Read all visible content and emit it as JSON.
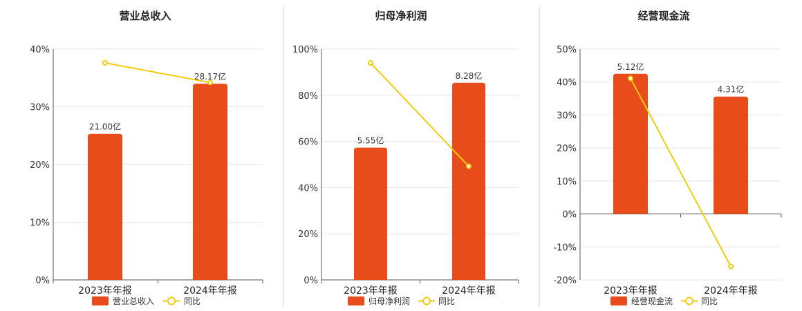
{
  "colors": {
    "bar": "#e84c1b",
    "line": "#f2cc0c",
    "marker_fill": "#ffffff"
  },
  "chart_data": [
    {
      "type": "bar",
      "title": "营业总收入",
      "categories": [
        "2023年年报",
        "2024年年报"
      ],
      "ylim": [
        0,
        40
      ],
      "yticks": [
        0,
        10,
        20,
        30,
        40
      ],
      "ytick_labels": [
        "0%",
        "10%",
        "20%",
        "30%",
        "40%"
      ],
      "series": [
        {
          "name": "营业总收入",
          "kind": "bar",
          "values": [
            25.3,
            34.0
          ],
          "labels": [
            "21.00亿",
            "28.17亿"
          ]
        },
        {
          "name": "同比",
          "kind": "line",
          "values": [
            37.6,
            34.2
          ]
        }
      ],
      "legend": "bottom",
      "grid": true
    },
    {
      "type": "bar",
      "title": "归母净利润",
      "categories": [
        "2023年年报",
        "2024年年报"
      ],
      "ylim": [
        0,
        100
      ],
      "yticks": [
        0,
        20,
        40,
        60,
        80,
        100
      ],
      "ytick_labels": [
        "0%",
        "20%",
        "40%",
        "60%",
        "80%",
        "100%"
      ],
      "series": [
        {
          "name": "归母净利润",
          "kind": "bar",
          "values": [
            57.3,
            85.4
          ],
          "labels": [
            "5.55亿",
            "8.28亿"
          ]
        },
        {
          "name": "同比",
          "kind": "line",
          "values": [
            94.0,
            49.2
          ]
        }
      ],
      "legend": "bottom",
      "grid": true
    },
    {
      "type": "bar",
      "title": "经营现金流",
      "categories": [
        "2023年年报",
        "2024年年报"
      ],
      "ylim": [
        -20,
        50
      ],
      "yticks": [
        -20,
        -10,
        0,
        10,
        20,
        30,
        40,
        50
      ],
      "ytick_labels": [
        "-20%",
        "-10%",
        "0%",
        "10%",
        "20%",
        "30%",
        "40%",
        "50%"
      ],
      "series": [
        {
          "name": "经营现金流",
          "kind": "bar",
          "values": [
            42.5,
            35.6
          ],
          "labels": [
            "5.12亿",
            "4.31亿"
          ]
        },
        {
          "name": "同比",
          "kind": "line",
          "values": [
            41.1,
            -15.9
          ]
        }
      ],
      "legend": "bottom",
      "grid": true
    }
  ]
}
